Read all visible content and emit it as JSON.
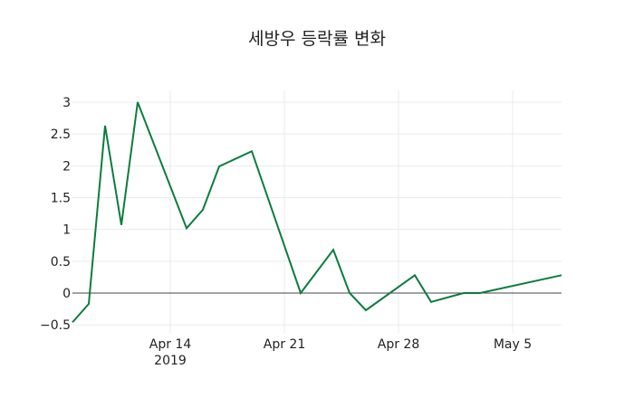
{
  "chart_data": {
    "type": "line",
    "title": "세방우 등락률 변화",
    "xlabel": "",
    "ylabel": "",
    "x": [
      "2019-04-08",
      "2019-04-09",
      "2019-04-10",
      "2019-04-11",
      "2019-04-12",
      "2019-04-15",
      "2019-04-16",
      "2019-04-17",
      "2019-04-19",
      "2019-04-22",
      "2019-04-24",
      "2019-04-25",
      "2019-04-26",
      "2019-04-29",
      "2019-04-30",
      "2019-05-02",
      "2019-05-03",
      "2019-05-08"
    ],
    "series": [
      {
        "name": "등락률",
        "color": "#0b7d3e",
        "values": [
          -0.46,
          -0.17,
          2.63,
          1.07,
          3.0,
          1.02,
          1.31,
          1.99,
          2.23,
          0.0,
          0.68,
          0.0,
          -0.27,
          0.28,
          -0.14,
          0.0,
          0.0,
          0.28
        ]
      }
    ],
    "ylim": [
      -0.5,
      3.15
    ],
    "yticks": [
      -0.5,
      0,
      0.5,
      1,
      1.5,
      2,
      2.5,
      3
    ],
    "ytick_labels": [
      "−0.5",
      "0",
      "0.5",
      "1",
      "1.5",
      "2",
      "2.5",
      "3"
    ],
    "xticks": [
      {
        "date": "2019-04-14",
        "label": "Apr 14",
        "sublabel": "2019"
      },
      {
        "date": "2019-04-21",
        "label": "Apr 21",
        "sublabel": ""
      },
      {
        "date": "2019-04-28",
        "label": "Apr 28",
        "sublabel": ""
      },
      {
        "date": "2019-05-05",
        "label": "May 5",
        "sublabel": ""
      }
    ],
    "grid": true,
    "zero_line": true,
    "legend": "none"
  }
}
